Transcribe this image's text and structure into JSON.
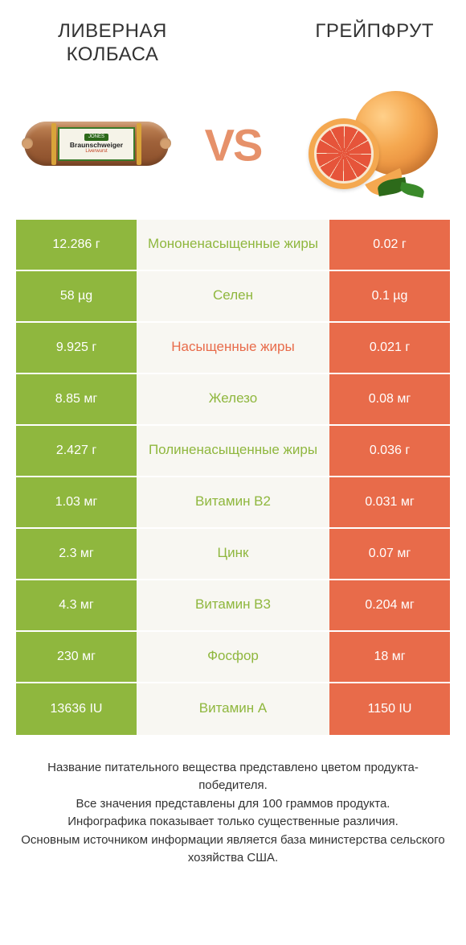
{
  "header": {
    "left_title": "ЛИВЕРНАЯ\nКОЛБАСА",
    "right_title": "ГРЕЙПФРУТ",
    "vs_label": "VS",
    "sausage_brand": "JONES",
    "sausage_main": "Braunschweiger",
    "sausage_sub": "Liverwurst"
  },
  "colors": {
    "left_winner": "#8fb73e",
    "right_winner": "#e86b4a",
    "mid_bg": "#f8f7f2",
    "nutrient_green": "#8fb73e",
    "nutrient_orange": "#e86b4a",
    "cell_text": "#ffffff"
  },
  "comparison": {
    "rows": [
      {
        "nutrient": "Мононенасыщенные жиры",
        "left": "12.286 г",
        "right": "0.02 г",
        "winner": "left"
      },
      {
        "nutrient": "Селен",
        "left": "58 µg",
        "right": "0.1 µg",
        "winner": "left"
      },
      {
        "nutrient": "Насыщенные жиры",
        "left": "9.925 г",
        "right": "0.021 г",
        "winner": "right"
      },
      {
        "nutrient": "Железо",
        "left": "8.85 мг",
        "right": "0.08 мг",
        "winner": "left"
      },
      {
        "nutrient": "Полиненасыщенные жиры",
        "left": "2.427 г",
        "right": "0.036 г",
        "winner": "left"
      },
      {
        "nutrient": "Витамин B2",
        "left": "1.03 мг",
        "right": "0.031 мг",
        "winner": "left"
      },
      {
        "nutrient": "Цинк",
        "left": "2.3 мг",
        "right": "0.07 мг",
        "winner": "left"
      },
      {
        "nutrient": "Витамин B3",
        "left": "4.3 мг",
        "right": "0.204 мг",
        "winner": "left"
      },
      {
        "nutrient": "Фосфор",
        "left": "230 мг",
        "right": "18 мг",
        "winner": "left"
      },
      {
        "nutrient": "Витамин A",
        "left": "13636 IU",
        "right": "1150 IU",
        "winner": "left"
      }
    ]
  },
  "footer": {
    "line1": "Название питательного вещества представлено цветом продукта-победителя.",
    "line2": "Все значения представлены для 100 граммов продукта.",
    "line3": "Инфографика показывает только существенные различия.",
    "line4": "Основным источником информации является база министерства сельского хозяйства США."
  }
}
